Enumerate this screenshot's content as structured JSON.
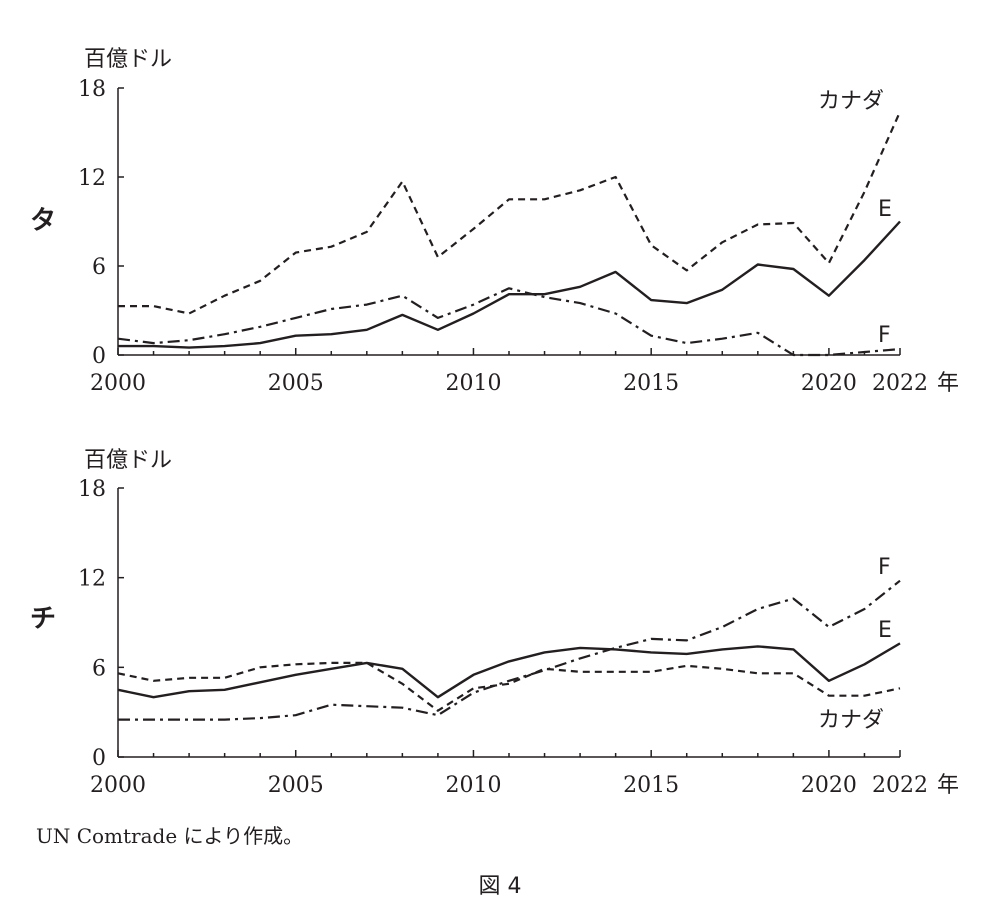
{
  "figure": {
    "caption": "図 4",
    "source": "UN Comtrade により作成。"
  },
  "chart_data": [
    {
      "type": "line",
      "panel_label": "タ",
      "ylabel": "百億ドル",
      "xlabel": "年",
      "ylim": [
        0,
        18
      ],
      "yticks": [
        "0",
        "6",
        "12",
        "18"
      ],
      "xticks": [
        "2000",
        "2005",
        "2010",
        "2015",
        "2020",
        "2022"
      ],
      "x": [
        2000,
        2001,
        2002,
        2003,
        2004,
        2005,
        2006,
        2007,
        2008,
        2009,
        2010,
        2011,
        2012,
        2013,
        2014,
        2015,
        2016,
        2017,
        2018,
        2019,
        2020,
        2021,
        2022
      ],
      "series": [
        {
          "name": "カナダ",
          "style": "dashed",
          "values": [
            3.3,
            3.3,
            2.8,
            4.0,
            5.0,
            6.9,
            7.3,
            8.3,
            11.7,
            6.6,
            8.5,
            10.5,
            10.5,
            11.1,
            12.0,
            7.4,
            5.7,
            7.6,
            8.8,
            8.9,
            6.2,
            11.0,
            16.4
          ]
        },
        {
          "name": "E",
          "style": "solid",
          "values": [
            0.6,
            0.6,
            0.5,
            0.6,
            0.8,
            1.3,
            1.4,
            1.7,
            2.7,
            1.7,
            2.8,
            4.1,
            4.1,
            4.6,
            5.6,
            3.7,
            3.5,
            4.4,
            6.1,
            5.8,
            4.0,
            6.4,
            9.0
          ]
        },
        {
          "name": "F",
          "style": "dashdot",
          "values": [
            1.1,
            0.8,
            1.0,
            1.4,
            1.9,
            2.5,
            3.1,
            3.4,
            4.0,
            2.5,
            3.4,
            4.5,
            3.9,
            3.5,
            2.8,
            1.3,
            0.8,
            1.1,
            1.5,
            0.0,
            0.0,
            0.2,
            0.4
          ]
        }
      ]
    },
    {
      "type": "line",
      "panel_label": "チ",
      "ylabel": "百億ドル",
      "xlabel": "年",
      "ylim": [
        0,
        18
      ],
      "yticks": [
        "0",
        "6",
        "12",
        "18"
      ],
      "xticks": [
        "2000",
        "2005",
        "2010",
        "2015",
        "2020",
        "2022"
      ],
      "x": [
        2000,
        2001,
        2002,
        2003,
        2004,
        2005,
        2006,
        2007,
        2008,
        2009,
        2010,
        2011,
        2012,
        2013,
        2014,
        2015,
        2016,
        2017,
        2018,
        2019,
        2020,
        2021,
        2022
      ],
      "series": [
        {
          "name": "F",
          "style": "dashdot",
          "values": [
            2.5,
            2.5,
            2.5,
            2.5,
            2.6,
            2.8,
            3.5,
            3.4,
            3.3,
            2.8,
            4.3,
            5.1,
            5.8,
            6.6,
            7.3,
            7.9,
            7.8,
            8.7,
            9.9,
            10.6,
            8.7,
            9.9,
            11.8
          ]
        },
        {
          "name": "E",
          "style": "solid",
          "values": [
            4.5,
            4.0,
            4.4,
            4.5,
            5.0,
            5.5,
            5.9,
            6.3,
            5.9,
            4.0,
            5.5,
            6.4,
            7.0,
            7.3,
            7.2,
            7.0,
            6.9,
            7.2,
            7.4,
            7.2,
            5.1,
            6.2,
            7.6
          ]
        },
        {
          "name": "カナダ",
          "style": "dashed",
          "values": [
            5.6,
            5.1,
            5.3,
            5.3,
            6.0,
            6.2,
            6.3,
            6.3,
            4.9,
            3.1,
            4.6,
            4.9,
            5.9,
            5.7,
            5.7,
            5.7,
            6.1,
            5.9,
            5.6,
            5.6,
            4.1,
            4.1,
            4.6
          ]
        }
      ]
    }
  ]
}
